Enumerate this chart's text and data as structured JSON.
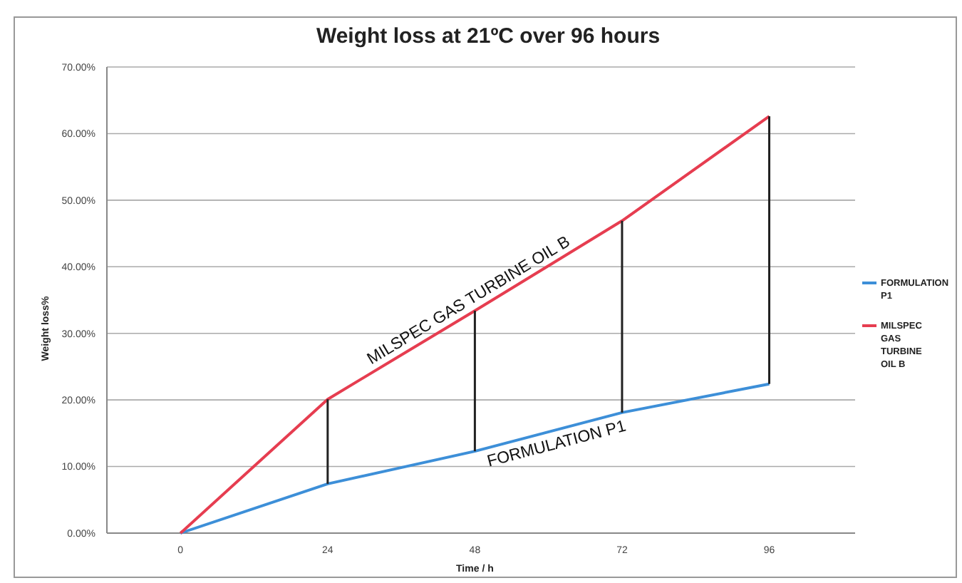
{
  "chart_data": {
    "type": "line",
    "title": "Weight loss at 21ºC over 96 hours",
    "xlabel": "Time / h",
    "ylabel": "Weight loss%",
    "x": [
      0,
      24,
      48,
      72,
      96
    ],
    "series": [
      {
        "name": "FORMULATION P1",
        "color": "#3d8fd8",
        "values": [
          0,
          7.4,
          12.3,
          18.1,
          22.4
        ]
      },
      {
        "name": "MILSPEC GAS TURBINE OIL B",
        "color": "#e63d50",
        "values": [
          0,
          20.1,
          33.4,
          46.9,
          62.6
        ]
      },
      {
        "type": "bar",
        "color": "#222222",
        "x": [
          24,
          48,
          72,
          96
        ],
        "base": [
          7.4,
          12.3,
          18.1,
          22.4
        ],
        "values": [
          12.7,
          21.1,
          28.8,
          40.2
        ]
      }
    ],
    "annotations": [
      {
        "text": "MILSPEC GAS TURBINE OIL B",
        "x": 48,
        "y": 33.4
      },
      {
        "text": "FORMULATION P1",
        "x": 72,
        "y": 18.1
      }
    ],
    "xlim": [
      -12,
      110
    ],
    "xticks": [
      0,
      24,
      48,
      72,
      96
    ],
    "ylim": [
      0,
      70
    ],
    "yticks": [
      {
        "value": 0,
        "label": "0.00%"
      },
      {
        "value": 10,
        "label": "10.00%"
      },
      {
        "value": 20,
        "label": "20.00%"
      },
      {
        "value": 30,
        "label": "30.00%"
      },
      {
        "value": 40,
        "label": "40.00%"
      },
      {
        "value": 50,
        "label": "50.00%"
      },
      {
        "value": 60,
        "label": "60.00%"
      },
      {
        "value": 70,
        "label": "70.00%"
      }
    ],
    "grid": "y",
    "legend": "right",
    "marker": "none",
    "line_style": "solid"
  }
}
